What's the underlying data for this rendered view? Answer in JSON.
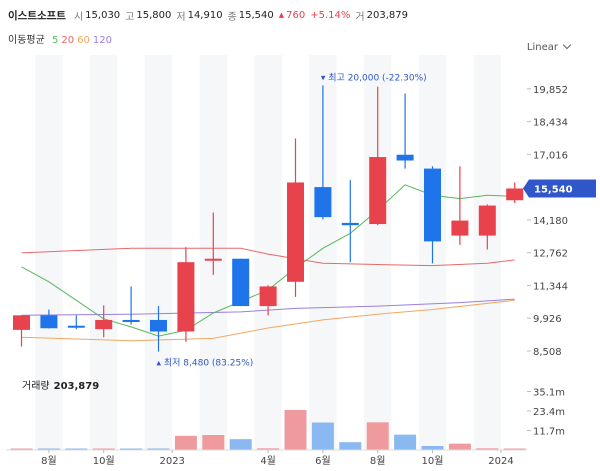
{
  "header": {
    "name": "이스트소프트",
    "open_label": "시",
    "open": "15,030",
    "high_label": "고",
    "high": "15,800",
    "low_label": "저",
    "low": "14,910",
    "close_label": "종",
    "close": "15,540",
    "change": "760",
    "change_pct": "+5.14%",
    "volume_label": "거",
    "volume": "203,879"
  },
  "ma_legend": {
    "label": "이동평균",
    "items": [
      {
        "text": "5",
        "color": "#58b85c"
      },
      {
        "text": "20",
        "color": "#e8686a"
      },
      {
        "text": "60",
        "color": "#f0a860"
      },
      {
        "text": "120",
        "color": "#9b7fe0"
      }
    ]
  },
  "scale_mode": "Linear",
  "colors": {
    "up": "#e8424d",
    "down": "#1e74e8",
    "up_vol": "#ef9a9c",
    "down_vol": "#8ab8f0",
    "badge": "#2f57c9"
  },
  "chart_data": {
    "type": "candlestick",
    "price_axis": {
      "ticks": [
        "19,852",
        "18,434",
        "17,016",
        "15,598",
        "14,180",
        "12,762",
        "11,344",
        "9,926",
        "8,508"
      ],
      "ylim": [
        7900,
        21100
      ]
    },
    "current_price": "15,540",
    "max_annotation": "최고 20,000 (-22.30%)",
    "min_annotation": "최저 8,480 (83.25%)",
    "x_ticks": [
      "8월",
      "10월",
      "2023",
      "4월",
      "6월",
      "8월",
      "10월",
      "2024"
    ],
    "candles": [
      {
        "open": 9420,
        "high": 10050,
        "low": 8700,
        "close": 10050
      },
      {
        "open": 10050,
        "high": 10300,
        "low": 9480,
        "close": 9490
      },
      {
        "open": 9600,
        "high": 10050,
        "low": 9450,
        "close": 9520
      },
      {
        "open": 9450,
        "high": 10480,
        "low": 9100,
        "close": 9850
      },
      {
        "open": 9850,
        "high": 11300,
        "low": 9650,
        "close": 9760
      },
      {
        "open": 9850,
        "high": 10450,
        "low": 8480,
        "close": 9350
      },
      {
        "open": 9350,
        "high": 13000,
        "low": 8900,
        "close": 12350
      },
      {
        "open": 12430,
        "high": 14500,
        "low": 11800,
        "close": 12500
      },
      {
        "open": 12500,
        "high": 12500,
        "low": 10450,
        "close": 10450
      },
      {
        "open": 10450,
        "high": 11350,
        "low": 10050,
        "close": 11300
      },
      {
        "open": 11500,
        "high": 17700,
        "low": 10850,
        "close": 15800
      },
      {
        "open": 15600,
        "high": 20000,
        "low": 14200,
        "close": 14300
      },
      {
        "open": 14050,
        "high": 15900,
        "low": 12350,
        "close": 13950
      },
      {
        "open": 14000,
        "high": 19950,
        "low": 13950,
        "close": 16900
      },
      {
        "open": 17000,
        "high": 19650,
        "low": 16400,
        "close": 16750
      },
      {
        "open": 16400,
        "high": 16500,
        "low": 12300,
        "close": 13250
      },
      {
        "open": 13500,
        "high": 16500,
        "low": 13100,
        "close": 14150
      },
      {
        "open": 13500,
        "high": 14850,
        "low": 12900,
        "close": 14800
      },
      {
        "open": 15030,
        "high": 15800,
        "low": 14910,
        "close": 15540
      }
    ],
    "ma5": [
      [
        0,
        12150
      ],
      [
        1,
        11500
      ],
      [
        2,
        10700
      ],
      [
        3,
        9900
      ],
      [
        4,
        9550
      ],
      [
        5,
        9150
      ],
      [
        6,
        9400
      ],
      [
        7,
        10150
      ],
      [
        8,
        10650
      ],
      [
        9,
        11150
      ],
      [
        10,
        12100
      ],
      [
        11,
        12950
      ],
      [
        12,
        13600
      ],
      [
        13,
        14600
      ],
      [
        14,
        15700
      ],
      [
        15,
        15250
      ],
      [
        16,
        15100
      ],
      [
        17,
        15250
      ],
      [
        18,
        15200
      ]
    ],
    "ma20": [
      [
        0,
        12750
      ],
      [
        4,
        12950
      ],
      [
        8,
        12950
      ],
      [
        9,
        12700
      ],
      [
        11,
        12300
      ],
      [
        13,
        12250
      ],
      [
        15,
        12200
      ],
      [
        17,
        12300
      ],
      [
        18,
        12450
      ]
    ],
    "ma60": [
      [
        0,
        9100
      ],
      [
        4,
        8950
      ],
      [
        7,
        9050
      ],
      [
        9,
        9500
      ],
      [
        11,
        9850
      ],
      [
        13,
        10100
      ],
      [
        15,
        10300
      ],
      [
        18,
        10700
      ]
    ],
    "ma120": [
      [
        0,
        10050
      ],
      [
        4,
        10100
      ],
      [
        8,
        10200
      ],
      [
        10,
        10350
      ],
      [
        13,
        10450
      ],
      [
        16,
        10600
      ],
      [
        18,
        10750
      ]
    ],
    "volume": {
      "label": "거래량",
      "value": "203,879",
      "ticks": [
        "35.1m",
        "23.4m",
        "11.7m"
      ],
      "ylim": [
        0,
        46800000
      ],
      "values": [
        300000,
        400000,
        300000,
        500000,
        700000,
        200000,
        8500000,
        9000000,
        6500000,
        1000000,
        24000000,
        16500000,
        4700000,
        16600000,
        9200000,
        2400000,
        3800000,
        1000000,
        200000
      ]
    }
  }
}
